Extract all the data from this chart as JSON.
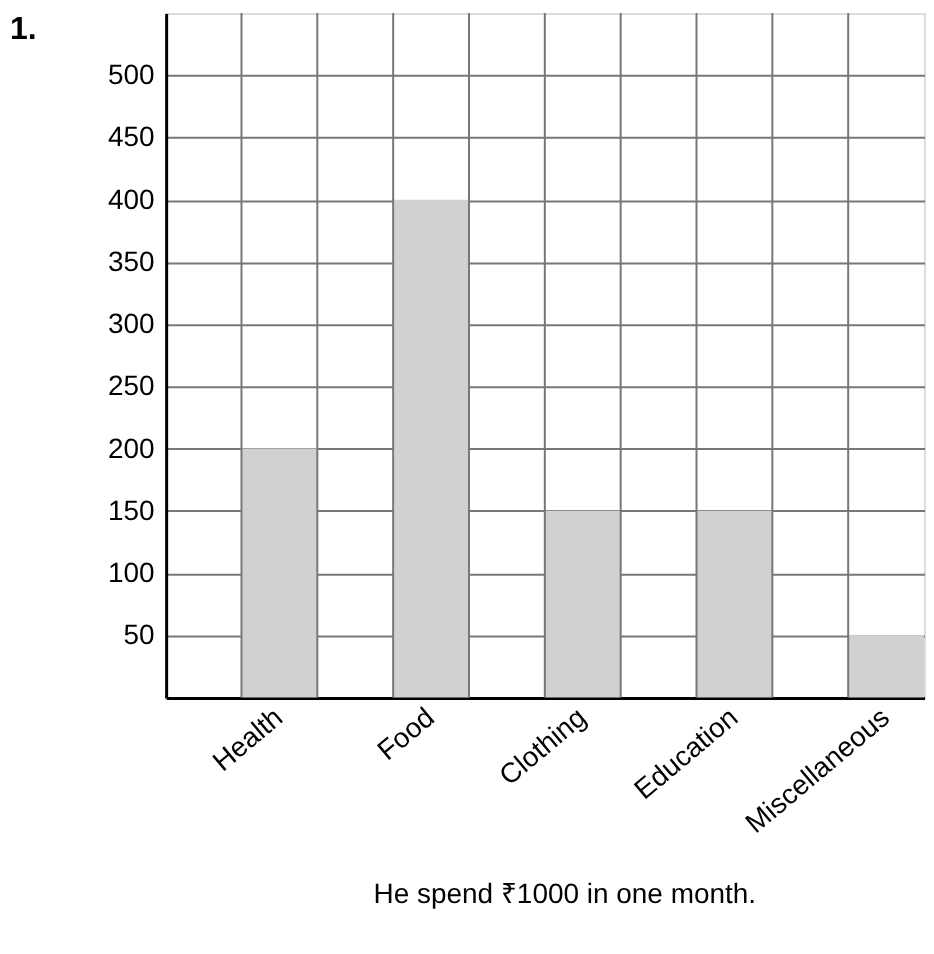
{
  "chart_data": {
    "type": "bar",
    "title": "1.",
    "categories": [
      "Health",
      "Food",
      "Clothing",
      "Education",
      "Miscellaneous"
    ],
    "values": [
      200,
      400,
      150,
      150,
      50
    ],
    "color": "#d1d1d1",
    "ylim": [
      0,
      550
    ],
    "yticks": [
      50,
      100,
      150,
      200,
      250,
      300,
      350,
      400,
      450,
      500
    ],
    "grid": true,
    "annotations": [
      "He spend ₹1000 in one month."
    ]
  }
}
